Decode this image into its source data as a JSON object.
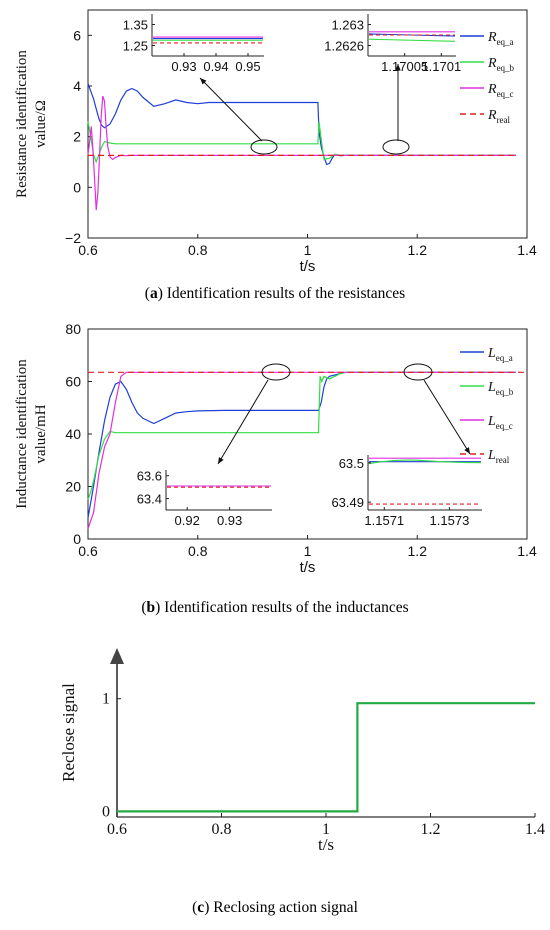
{
  "figure": {
    "caption_a": {
      "label": "a",
      "text": " Identification results of the resistances"
    },
    "caption_b": {
      "label": "b",
      "text": " Identification results of the inductances"
    },
    "caption_c": {
      "label": "c",
      "text": " Reclosing action signal"
    }
  },
  "colors": {
    "phase_a": "#1f3fd6",
    "phase_b": "#33dd44",
    "phase_c": "#e030e0",
    "real": "#e02020",
    "signal": "#22aa44"
  },
  "chart_data": [
    {
      "id": "a",
      "type": "line",
      "xlabel": "t/s",
      "ylabel": [
        "Resistance identification",
        "value/Ω"
      ],
      "xlim": [
        0.6,
        1.4
      ],
      "ylim": [
        -2,
        7
      ],
      "xticks": [
        0.6,
        0.8,
        1.0,
        1.2,
        1.4
      ],
      "xtick_labels": [
        "0.6",
        "0.8",
        "1",
        "1.2",
        "1.4"
      ],
      "yticks": [
        -2,
        0,
        2,
        4,
        6
      ],
      "ytick_labels": [
        "−2",
        "0",
        "2",
        "4",
        "6"
      ],
      "legend": [
        {
          "main": "R",
          "sub": "eq_a",
          "color": "#1f3fd6",
          "dash": false
        },
        {
          "main": "R",
          "sub": "eq_b",
          "color": "#33dd44",
          "dash": false
        },
        {
          "main": "R",
          "sub": "eq_c",
          "color": "#e030e0",
          "dash": false
        },
        {
          "main": "R",
          "sub": "real",
          "color": "#e02020",
          "dash": true
        }
      ],
      "series": [
        {
          "name": "R_eq_a",
          "color": "#1f3fd6",
          "x": [
            0.6,
            0.605,
            0.61,
            0.615,
            0.62,
            0.625,
            0.63,
            0.64,
            0.65,
            0.66,
            0.67,
            0.68,
            0.69,
            0.7,
            0.72,
            0.74,
            0.76,
            0.78,
            0.8,
            0.82,
            0.85,
            0.9,
            0.95,
            1.0,
            1.019,
            1.021,
            1.025,
            1.03,
            1.035,
            1.04,
            1.045,
            1.05,
            1.06,
            1.07,
            1.08,
            1.38
          ],
          "y": [
            4.1,
            3.8,
            3.5,
            3.1,
            2.7,
            2.45,
            2.35,
            2.5,
            2.9,
            3.45,
            3.8,
            3.9,
            3.8,
            3.55,
            3.2,
            3.3,
            3.45,
            3.35,
            3.3,
            3.35,
            3.35,
            3.35,
            3.35,
            3.35,
            3.35,
            2.2,
            1.6,
            1.2,
            0.9,
            0.95,
            1.15,
            1.3,
            1.25,
            1.26,
            1.26,
            1.26
          ]
        },
        {
          "name": "R_eq_b",
          "color": "#33dd44",
          "x": [
            0.6,
            0.605,
            0.61,
            0.615,
            0.62,
            0.625,
            0.63,
            0.64,
            0.65,
            0.66,
            0.7,
            0.8,
            0.9,
            1.0,
            1.019,
            1.021,
            1.025,
            1.03,
            1.04,
            1.05,
            1.06,
            1.38
          ],
          "y": [
            2.6,
            2.0,
            1.3,
            1.0,
            1.3,
            1.6,
            1.8,
            1.75,
            1.72,
            1.72,
            1.72,
            1.72,
            1.72,
            1.72,
            1.72,
            2.6,
            1.9,
            1.1,
            1.15,
            1.3,
            1.26,
            1.26
          ]
        },
        {
          "name": "R_eq_c",
          "color": "#e030e0",
          "x": [
            0.6,
            0.603,
            0.606,
            0.609,
            0.612,
            0.615,
            0.618,
            0.621,
            0.624,
            0.627,
            0.63,
            0.633,
            0.636,
            0.64,
            0.645,
            0.65,
            0.66,
            0.67,
            0.68,
            1.38
          ],
          "y": [
            1.3,
            1.8,
            2.4,
            1.5,
            0.3,
            -0.9,
            -0.2,
            1.2,
            2.8,
            3.6,
            3.4,
            2.4,
            1.6,
            1.2,
            1.1,
            1.18,
            1.26,
            1.25,
            1.26,
            1.26
          ]
        },
        {
          "name": "R_real",
          "color": "#e02020",
          "dashed": true,
          "x": [
            0.6,
            1.38
          ],
          "y": [
            1.26,
            1.26
          ]
        }
      ],
      "insets": [
        {
          "xticks": [
            0.93,
            0.94,
            0.95
          ],
          "xtick_labels": [
            "0.93",
            "0.94",
            "0.95"
          ],
          "xlim": [
            0.92,
            0.955
          ],
          "ylim": [
            1.2,
            1.4
          ],
          "yticks": [
            1.25,
            1.35
          ],
          "ytick_labels": [
            "1.25",
            "1.35"
          ],
          "lines": [
            {
              "color": "#e02020",
              "dashed": true,
              "y": 1.262
            },
            {
              "color": "#33dd44",
              "y": 1.275
            },
            {
              "color": "#1f3fd6",
              "y": 1.283
            },
            {
              "color": "#e030e0",
              "y": 1.29
            }
          ]
        },
        {
          "xticks": [
            1.17005,
            1.1701
          ],
          "xtick_labels": [
            "1.17005",
            "1.1701"
          ],
          "xlim": [
            1.17,
            1.17012
          ],
          "ylim": [
            1.2624,
            1.2632
          ],
          "yticks": [
            1.2626,
            1.263
          ],
          "ytick_labels": [
            "1.2626",
            "1.263"
          ],
          "lines": [
            {
              "color": "#e030e0",
              "y": 1.26286
            },
            {
              "color": "#1f3fd6",
              "y": 1.26282,
              "y2": 1.26278
            },
            {
              "color": "#e02020",
              "dashed": true,
              "y": 1.2628
            },
            {
              "color": "#33dd44",
              "y": 1.26272,
              "y2": 1.26268
            }
          ]
        }
      ]
    },
    {
      "id": "b",
      "type": "line",
      "xlabel": "t/s",
      "ylabel": [
        "Inductance identification",
        "value/mH"
      ],
      "xlim": [
        0.6,
        1.4
      ],
      "ylim": [
        0,
        80
      ],
      "xticks": [
        0.6,
        0.8,
        1.0,
        1.2,
        1.4
      ],
      "xtick_labels": [
        "0.6",
        "0.8",
        "1",
        "1.2",
        "1.4"
      ],
      "yticks": [
        0,
        20,
        40,
        60,
        80
      ],
      "ytick_labels": [
        "0",
        "20",
        "40",
        "60",
        "80"
      ],
      "legend": [
        {
          "main": "L",
          "sub": "eq_a",
          "color": "#1f3fd6",
          "dash": false
        },
        {
          "main": "L",
          "sub": "eq_b",
          "color": "#33dd44",
          "dash": false
        },
        {
          "main": "L",
          "sub": "eq_c",
          "color": "#e030e0",
          "dash": false
        },
        {
          "main": "L",
          "sub": "real",
          "color": "#e02020",
          "dash": true
        }
      ],
      "series": [
        {
          "name": "L_eq_a",
          "color": "#1f3fd6",
          "x": [
            0.6,
            0.61,
            0.62,
            0.63,
            0.64,
            0.65,
            0.66,
            0.67,
            0.68,
            0.69,
            0.7,
            0.72,
            0.74,
            0.76,
            0.78,
            0.8,
            0.85,
            0.9,
            1.0,
            1.02,
            1.025,
            1.03,
            1.035,
            1.04,
            1.05,
            1.06,
            1.07,
            1.38
          ],
          "y": [
            8,
            20,
            33,
            45,
            54,
            59,
            60,
            57,
            52,
            48,
            46,
            44,
            46,
            48,
            48.5,
            48.8,
            49,
            49,
            49,
            49,
            52,
            58,
            61,
            62,
            62.5,
            63,
            63.5,
            63.5
          ]
        },
        {
          "name": "L_eq_b",
          "color": "#33dd44",
          "x": [
            0.6,
            0.605,
            0.61,
            0.62,
            0.63,
            0.64,
            0.65,
            0.66,
            0.7,
            0.8,
            0.9,
            1.0,
            1.02,
            1.023,
            1.026,
            1.03,
            1.04,
            1.05,
            1.06,
            1.07,
            1.38
          ],
          "y": [
            15,
            18,
            22,
            32,
            38,
            41,
            40.5,
            40.5,
            40.5,
            40.5,
            40.5,
            40.5,
            40.5,
            62,
            60,
            62,
            61,
            62,
            63,
            63.5,
            63.5
          ]
        },
        {
          "name": "L_eq_c",
          "color": "#e030e0",
          "x": [
            0.6,
            0.61,
            0.62,
            0.63,
            0.64,
            0.65,
            0.66,
            0.67,
            0.68,
            1.38
          ],
          "y": [
            4,
            10,
            25,
            35,
            40,
            52,
            62,
            63.5,
            63.5,
            63.5
          ]
        },
        {
          "name": "L_real",
          "color": "#e02020",
          "dashed": true,
          "x": [
            0.6,
            1.4
          ],
          "y": [
            63.5,
            63.5
          ]
        }
      ],
      "insets": [
        {
          "xticks": [
            0.92,
            0.93
          ],
          "xtick_labels": [
            "0.92",
            "0.93"
          ],
          "xlim": [
            0.915,
            0.94
          ],
          "ylim": [
            63.3,
            63.65
          ],
          "yticks": [
            63.4,
            63.6
          ],
          "ytick_labels": [
            "63.4",
            "63.6"
          ],
          "lines": [
            {
              "color": "#e030e0",
              "y": 63.51
            },
            {
              "color": "#e02020",
              "dashed": true,
              "y": 63.5
            }
          ]
        },
        {
          "xticks": [
            1.1571,
            1.1573
          ],
          "xtick_labels": [
            "1.1571",
            "1.1573"
          ],
          "xlim": [
            1.15705,
            1.1574
          ],
          "ylim": [
            63.488,
            63.502
          ],
          "yticks": [
            63.49,
            63.5
          ],
          "ytick_labels": [
            "63.49",
            "63.5"
          ],
          "lines": [
            {
              "color": "#e030e0",
              "y": 63.5012
            },
            {
              "color": "#1f3fd6",
              "y": 63.5003
            },
            {
              "color": "#33dd44",
              "wave": true,
              "y": 63.5003
            },
            {
              "color": "#e02020",
              "dashed": true,
              "y": 63.4895
            }
          ]
        }
      ]
    },
    {
      "id": "c",
      "type": "line",
      "xlabel": "t/s",
      "ylabel": [
        "Reclose signal"
      ],
      "xlim": [
        0.6,
        1.4
      ],
      "ylim": [
        -0.05,
        1.45
      ],
      "xticks": [
        0.6,
        0.8,
        1.0,
        1.2,
        1.4
      ],
      "xtick_labels": [
        "0.6",
        "0.8",
        "1",
        "1.2",
        "1.4"
      ],
      "yticks": [
        0,
        1
      ],
      "ytick_labels": [
        "0",
        "1"
      ],
      "series": [
        {
          "name": "reclose",
          "color": "#22aa44",
          "x": [
            0.6,
            1.06,
            1.06,
            1.4
          ],
          "y": [
            0,
            0,
            0.96,
            0.96
          ]
        }
      ]
    }
  ]
}
